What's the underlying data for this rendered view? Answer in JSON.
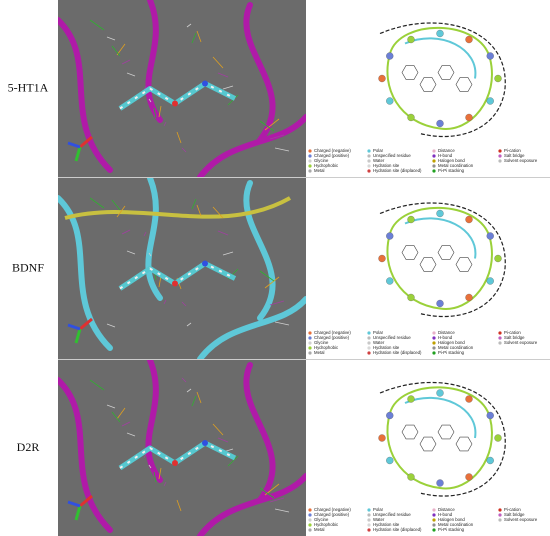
{
  "panels": [
    {
      "label": "5-HT1A",
      "legend": [
        [
          "Charged (negative)",
          "Charged (positive)",
          "Glycine",
          "Hydrophobic",
          "Metal"
        ],
        [
          "Polar",
          "Unspecified residue",
          "Water",
          "Hydration site",
          "Hydration site (displaced)"
        ],
        [
          "Distance",
          "H-bond",
          "Halogen bond",
          "Metal coordination",
          "Pi-Pi stacking"
        ],
        [
          "Pi-cation",
          "Salt bridge",
          "Solvent exposure"
        ]
      ]
    },
    {
      "label": "BDNF",
      "legend": [
        [
          "Charged (negative)",
          "Charged (positive)",
          "Glycine",
          "Hydrophobic",
          "Metal"
        ],
        [
          "Polar",
          "Unspecified residue",
          "Water",
          "Hydration site",
          "Hydration site (displaced)"
        ],
        [
          "Distance",
          "H-bond",
          "Halogen bond",
          "Metal coordination",
          "Pi-Pi stacking"
        ],
        [
          "Pi-cation",
          "Salt bridge",
          "Solvent exposure"
        ]
      ]
    },
    {
      "label": "D2R",
      "legend": [
        [
          "Charged (negative)",
          "Charged (positive)",
          "Glycine",
          "Hydrophobic",
          "Metal"
        ],
        [
          "Polar",
          "Unspecified residue",
          "Water",
          "Hydration site",
          "Hydration site (displaced)"
        ],
        [
          "Distance",
          "H-bond",
          "Halogen bond",
          "Metal coordination",
          "Pi-Pi stacking"
        ],
        [
          "Pi-cation",
          "Salt bridge",
          "Solvent exposure"
        ]
      ]
    }
  ]
}
